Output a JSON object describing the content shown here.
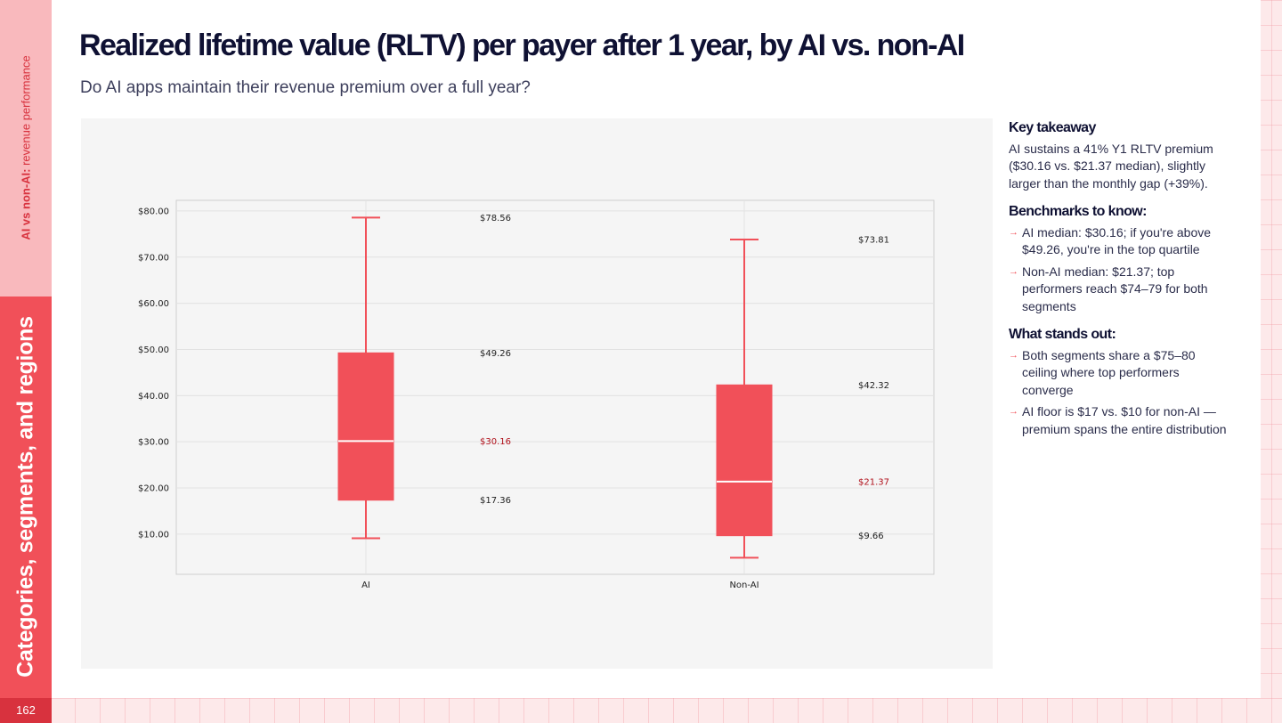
{
  "sidebar": {
    "section_bold": "AI vs non-AI:",
    "section_rest": " revenue performance",
    "chapter": "Categories, segments, and regions",
    "page_number": "162"
  },
  "header": {
    "title": "Realized lifetime value (RLTV) per payer after 1 year, by AI vs. non-AI",
    "subtitle": "Do AI apps maintain their revenue premium over a full year?"
  },
  "takeaways": {
    "key_heading": "Key takeaway",
    "key_text": "AI sustains a 41% Y1 RLTV premium ($30.16 vs. $21.37 median), slightly larger than the monthly gap (+39%).",
    "benchmarks_heading": "Benchmarks to know:",
    "benchmarks": [
      "AI median: $30.16; if you're above $49.26, you're in the top quartile",
      "Non-AI median: $21.37; top performers reach $74–79 for both segments"
    ],
    "stands_out_heading": "What stands out:",
    "stands_out": [
      "Both segments share a $75–80 ceiling where top performers converge",
      "AI floor is $17 vs. $10 for non-AI — premium spans the entire distribution"
    ]
  },
  "colors": {
    "accent": "#f15059",
    "median_label": "#b0101a",
    "panel_bg": "#f5f5f5",
    "plot_bg": "#f5f5f5"
  },
  "chart_data": {
    "type": "box",
    "categories": [
      "AI",
      "Non-AI"
    ],
    "boxes": [
      {
        "category": "AI",
        "whisker_low": 9.1,
        "q1": 17.36,
        "median": 30.16,
        "q3": 49.26,
        "whisker_high": 78.56,
        "labels": {
          "high": "$78.56",
          "q3": "$49.26",
          "median": "$30.16",
          "q1": "$17.36"
        }
      },
      {
        "category": "Non-AI",
        "whisker_low": 4.9,
        "q1": 9.66,
        "median": 21.37,
        "q3": 42.32,
        "whisker_high": 73.81,
        "labels": {
          "high": "$73.81",
          "q3": "$42.32",
          "median": "$21.37",
          "q1": "$9.66"
        }
      }
    ],
    "y_ticks": [
      10,
      20,
      30,
      40,
      50,
      60,
      70,
      80
    ],
    "y_tick_labels": [
      "$10.00",
      "$20.00",
      "$30.00",
      "$40.00",
      "$50.00",
      "$60.00",
      "$70.00",
      "$80.00"
    ],
    "ylim": [
      1.3,
      82.3
    ],
    "xlabel": "",
    "ylabel": "",
    "grid": true,
    "legend": "none"
  }
}
